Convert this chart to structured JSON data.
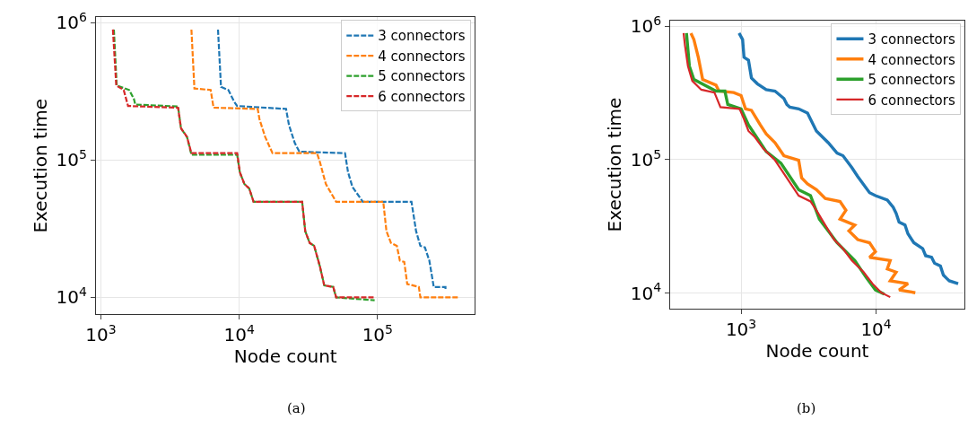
{
  "chart_data": [
    {
      "type": "line",
      "xlabel": "Node count",
      "ylabel": "Execution time",
      "log": "xy",
      "grid": true,
      "legend": "top right",
      "line_style": "dashed",
      "marker": "none",
      "xlim": [
        920,
        507000
      ],
      "ylim": [
        7500,
        1096000
      ],
      "xticks": [
        {
          "value": 1000,
          "label": "10$^{3}$"
        },
        {
          "value": 10000,
          "label": "10$^{4}$"
        },
        {
          "value": 100000,
          "label": "10$^{5}$"
        }
      ],
      "yticks": [
        {
          "value": 10000,
          "label": "10$^{4}$"
        },
        {
          "value": 100000,
          "label": "10$^{5}$"
        },
        {
          "value": 1000000,
          "label": "10$^{6}$"
        }
      ],
      "annotations": [
        "(a)"
      ],
      "series": [
        {
          "name": "3 connectors",
          "color": "#1f77b4",
          "x": [
            7020,
            7380,
            8340,
            9200,
            9660,
            21800,
            22900,
            25200,
            27200,
            58200,
            61200,
            65900,
            78300,
            176000,
            190000,
            204000,
            220000,
            237000,
            255000,
            310000,
            310000
          ],
          "values": [
            889000,
            340000,
            323000,
            265000,
            247000,
            235000,
            179000,
            133000,
            115000,
            112000,
            81300,
            63500,
            49600,
            49600,
            30300,
            23700,
            23100,
            18500,
            11900,
            11900,
            11300
          ]
        },
        {
          "name": "4 connectors",
          "color": "#ff7f0e",
          "x": [
            4510,
            4740,
            6210,
            6520,
            13600,
            14000,
            15400,
            17400,
            36500,
            38300,
            42300,
            50200,
            110000,
            116000,
            125000,
            138000,
            145000,
            156000,
            164000,
            199000,
            204000,
            383000
          ],
          "values": [
            889000,
            331000,
            323000,
            240000,
            235000,
            198000,
            147000,
            112000,
            112000,
            96600,
            66700,
            49600,
            49600,
            30300,
            24900,
            23700,
            18500,
            18100,
            12500,
            11900,
            10000,
            10000
          ]
        },
        {
          "name": "5 connectors",
          "color": "#2ca02c",
          "x": [
            1240,
            1300,
            1600,
            1730,
            1770,
            3610,
            3790,
            4190,
            4510,
            9660,
            10100,
            10900,
            11800,
            12700,
            28500,
            30000,
            32300,
            34800,
            38300,
            41200,
            47800,
            50200,
            95300
          ],
          "values": [
            889000,
            348000,
            323000,
            278000,
            253000,
            245000,
            170000,
            147000,
            109000,
            109000,
            81300,
            66700,
            62000,
            49600,
            49600,
            30300,
            24900,
            23700,
            16800,
            12200,
            11900,
            10000,
            9520
          ]
        },
        {
          "name": "6 connectors",
          "color": "#d62728",
          "x": [
            1220,
            1290,
            1460,
            1570,
            3610,
            3790,
            4190,
            4510,
            9660,
            10100,
            10900,
            11800,
            12700,
            28500,
            30000,
            32300,
            34800,
            38300,
            41200,
            47800,
            50200,
            95300
          ],
          "values": [
            889000,
            348000,
            323000,
            247000,
            240000,
            170000,
            147000,
            112000,
            112000,
            81300,
            66700,
            62000,
            49600,
            49600,
            30300,
            24900,
            23700,
            16800,
            12200,
            11900,
            10000,
            10000
          ]
        }
      ]
    },
    {
      "type": "line",
      "xlabel": "Node count",
      "ylabel": "Execution time",
      "log": "xy",
      "grid": true,
      "legend": "top right",
      "line_style": "solid",
      "marker": "none",
      "xlim": [
        299,
        44900
      ],
      "ylim": [
        7640,
        1100000
      ],
      "xticks": [
        {
          "value": 1000,
          "label": "10$^{3}$"
        },
        {
          "value": 10000,
          "label": "10$^{4}$"
        }
      ],
      "yticks": [
        {
          "value": 10000,
          "label": "10$^{4}$"
        },
        {
          "value": 100000,
          "label": "10$^{5}$"
        },
        {
          "value": 1000000,
          "label": "10$^{6}$"
        }
      ],
      "annotations": [
        "(b)"
      ],
      "series": [
        {
          "name": "3 connectors",
          "color": "#1f77b4",
          "x": [
            966,
            1026,
            1051,
            1134,
            1193,
            1319,
            1534,
            1784,
            2075,
            2183,
            2296,
            2670,
            3105,
            3266,
            3612,
            4202,
            4418,
            5138,
            5683,
            6610,
            7310,
            8942,
            9890,
            12100,
            13380,
            14070,
            14800,
            16370,
            17210,
            19030,
            22140,
            23280,
            25750,
            27080,
            29950,
            31500,
            33130,
            34830,
            40520
          ],
          "values": [
            885000,
            792000,
            584000,
            555000,
            409000,
            370000,
            334000,
            326000,
            287000,
            259000,
            247000,
            240000,
            223000,
            201000,
            164000,
            141000,
            134000,
            112000,
            107000,
            87300,
            74800,
            56600,
            53800,
            49900,
            44000,
            39700,
            34100,
            32400,
            27900,
            23900,
            21600,
            19100,
            18600,
            16800,
            16000,
            13700,
            13000,
            12400,
            11800
          ]
        },
        {
          "name": "4 connectors",
          "color": "#ff7f0e",
          "x": [
            425,
            447,
            482,
            519,
            652,
            686,
            882,
            1000,
            1078,
            1193,
            1387,
            1534,
            1784,
            2075,
            2670,
            2808,
            3105,
            3612,
            4202,
            5404,
            5977,
            5404,
            6953,
            6285,
            7311,
            8942,
            9890,
            8942,
            12720,
            12100,
            14070,
            12720,
            17210,
            14800,
            19520
          ],
          "values": [
            885000,
            792000,
            584000,
            399000,
            361000,
            326000,
            318000,
            302000,
            240000,
            234000,
            182000,
            156000,
            134000,
            107000,
            99000,
            73000,
            65900,
            59600,
            51200,
            48700,
            41800,
            35900,
            32400,
            29300,
            25200,
            23900,
            20500,
            18600,
            17600,
            15200,
            14400,
            12400,
            11800,
            10600,
            10100
          ]
        },
        {
          "name": "5 connectors",
          "color": "#2ca02c",
          "x": [
            394,
            414,
            447,
            652,
            758,
            797,
            1000,
            1134,
            1534,
            1973,
            2670,
            3266,
            3799,
            4418,
            5138,
            5977,
            6953,
            8504,
            9890,
            11500
          ],
          "values": [
            885000,
            501000,
            399000,
            326000,
            326000,
            259000,
            240000,
            182000,
            115000,
            94100,
            59600,
            53800,
            35900,
            29300,
            23900,
            20500,
            17600,
            13000,
            10600,
            9850
          ]
        },
        {
          "name": "6 connectors",
          "color": "#d62728",
          "x": [
            375,
            384,
            404,
            435,
            507,
            635,
            703,
            975,
            1051,
            1134,
            1254,
            1459,
            1784,
            2183,
            2670,
            3266,
            3612,
            4202,
            4887,
            5683,
            6610,
            8085,
            9404,
            10940,
            12720
          ],
          "values": [
            885000,
            716000,
            501000,
            389000,
            334000,
            318000,
            247000,
            240000,
            201000,
            164000,
            149000,
            121000,
            99000,
            73000,
            53800,
            48700,
            41800,
            32400,
            25200,
            21600,
            17600,
            14400,
            11800,
            10100,
            9360
          ]
        }
      ]
    }
  ]
}
